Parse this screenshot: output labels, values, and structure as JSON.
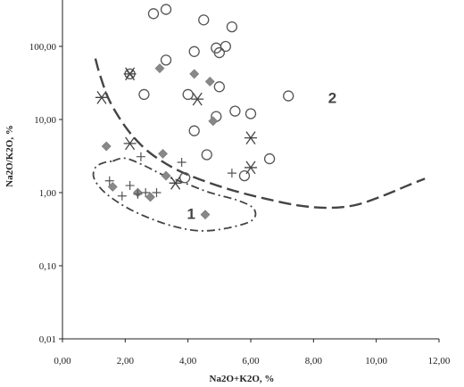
{
  "chart_data": {
    "type": "scatter",
    "x_scale": "linear",
    "y_scale": "log",
    "xlim": [
      0,
      12
    ],
    "ylim": [
      0.01,
      400
    ],
    "xlabel": "Na2O+K2O, %",
    "ylabel": "Na2O/K2O, %",
    "x_ticks": [
      "0,00",
      "2,00",
      "4,00",
      "6,00",
      "8,00",
      "10,00",
      "12,00"
    ],
    "y_ticks": [
      "0,01",
      "0,10",
      "1,00",
      "10,00",
      "100,00"
    ],
    "grid": false,
    "legend": "none",
    "region_labels": [
      {
        "text": "1",
        "x": 4.1,
        "y": 0.52
      },
      {
        "text": "2",
        "x": 8.6,
        "y": 20
      }
    ],
    "series": [
      {
        "marker": "circle",
        "color": "#555555",
        "points": [
          [
            2.9,
            280
          ],
          [
            3.3,
            320
          ],
          [
            4.5,
            230
          ],
          [
            5.4,
            185
          ],
          [
            4.9,
            95
          ],
          [
            5.2,
            100
          ],
          [
            5.0,
            82
          ],
          [
            4.2,
            85
          ],
          [
            3.3,
            65
          ],
          [
            2.6,
            22
          ],
          [
            4.0,
            22
          ],
          [
            5.0,
            28
          ],
          [
            6.0,
            12
          ],
          [
            5.5,
            13
          ],
          [
            4.9,
            11
          ],
          [
            7.2,
            21
          ],
          [
            4.2,
            7
          ],
          [
            4.6,
            3.3
          ],
          [
            6.6,
            2.9
          ],
          [
            3.9,
            1.6
          ],
          [
            5.8,
            1.7
          ]
        ]
      },
      {
        "marker": "circle-x",
        "color": "#555555",
        "points": [
          [
            2.15,
            42
          ]
        ]
      },
      {
        "marker": "diamond",
        "color": "#888888",
        "points": [
          [
            3.1,
            50
          ],
          [
            4.2,
            42
          ],
          [
            4.7,
            33
          ],
          [
            4.8,
            9.5
          ],
          [
            1.4,
            4.3
          ],
          [
            3.2,
            3.4
          ],
          [
            3.3,
            1.7
          ],
          [
            1.6,
            1.2
          ],
          [
            2.4,
            1.0
          ],
          [
            2.8,
            0.87
          ],
          [
            4.55,
            0.5
          ]
        ]
      },
      {
        "marker": "asterisk",
        "color": "#444444",
        "points": [
          [
            1.25,
            20
          ],
          [
            2.15,
            4.7
          ],
          [
            4.3,
            19
          ],
          [
            6.0,
            5.6
          ],
          [
            6.0,
            2.2
          ],
          [
            3.6,
            1.35
          ],
          [
            2.15,
            42
          ]
        ]
      },
      {
        "marker": "plus",
        "color": "#555555",
        "points": [
          [
            1.5,
            1.45
          ],
          [
            1.9,
            0.9
          ],
          [
            2.15,
            1.25
          ],
          [
            2.4,
            0.95
          ],
          [
            2.5,
            3.1
          ],
          [
            2.65,
            1.0
          ],
          [
            3.0,
            1.0
          ],
          [
            3.8,
            2.6
          ],
          [
            5.4,
            1.85
          ]
        ]
      }
    ],
    "boundaries": [
      {
        "style": "long-dash",
        "color": "#444444",
        "points": [
          [
            1.05,
            68
          ],
          [
            1.2,
            40
          ],
          [
            1.5,
            18
          ],
          [
            2.0,
            8
          ],
          [
            2.5,
            4.5
          ],
          [
            3.0,
            3.0
          ],
          [
            3.7,
            2.0
          ],
          [
            4.5,
            1.45
          ],
          [
            5.5,
            1.05
          ],
          [
            6.5,
            0.82
          ],
          [
            7.5,
            0.67
          ],
          [
            8.4,
            0.62
          ],
          [
            9.3,
            0.67
          ],
          [
            10.2,
            0.9
          ],
          [
            11.0,
            1.25
          ],
          [
            11.55,
            1.55
          ]
        ]
      },
      {
        "style": "dash-dot",
        "color": "#444444",
        "points": [
          [
            1.6,
            2.7
          ],
          [
            2.0,
            2.95
          ],
          [
            2.6,
            2.35
          ],
          [
            3.2,
            1.75
          ],
          [
            3.9,
            1.35
          ],
          [
            4.7,
            1.0
          ],
          [
            5.6,
            0.78
          ],
          [
            6.1,
            0.6
          ],
          [
            6.05,
            0.42
          ],
          [
            5.3,
            0.33
          ],
          [
            4.4,
            0.3
          ],
          [
            3.5,
            0.35
          ],
          [
            2.6,
            0.48
          ],
          [
            1.9,
            0.68
          ],
          [
            1.3,
            1.05
          ],
          [
            1.0,
            1.6
          ],
          [
            1.05,
            2.2
          ],
          [
            1.3,
            2.55
          ],
          [
            1.6,
            2.7
          ]
        ]
      }
    ]
  }
}
